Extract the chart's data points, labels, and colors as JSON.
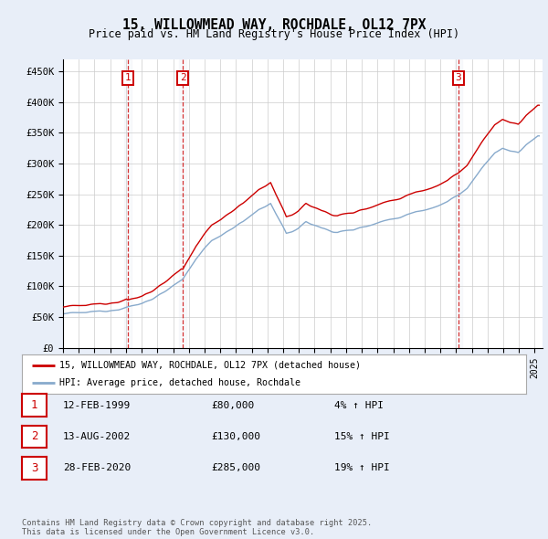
{
  "title": "15, WILLOWMEAD WAY, ROCHDALE, OL12 7PX",
  "subtitle": "Price paid vs. HM Land Registry's House Price Index (HPI)",
  "ylim": [
    0,
    470000
  ],
  "yticks": [
    0,
    50000,
    100000,
    150000,
    200000,
    250000,
    300000,
    350000,
    400000,
    450000
  ],
  "ytick_labels": [
    "£0",
    "£50K",
    "£100K",
    "£150K",
    "£200K",
    "£250K",
    "£300K",
    "£350K",
    "£400K",
    "£450K"
  ],
  "background_color": "#e8eef8",
  "plot_bg_color": "#ffffff",
  "grid_color": "#cccccc",
  "sale_dates": [
    "1999-02-12",
    "2002-08-13",
    "2020-02-28"
  ],
  "sale_prices": [
    80000,
    130000,
    285000
  ],
  "sale_labels": [
    "1",
    "2",
    "3"
  ],
  "sale_label_color": "#cc0000",
  "red_line_color": "#cc0000",
  "blue_line_color": "#88aacc",
  "legend_red": "15, WILLOWMEAD WAY, ROCHDALE, OL12 7PX (detached house)",
  "legend_blue": "HPI: Average price, detached house, Rochdale",
  "table_entries": [
    {
      "label": "1",
      "date": "12-FEB-1999",
      "price": "£80,000",
      "change": "4% ↑ HPI"
    },
    {
      "label": "2",
      "date": "13-AUG-2002",
      "price": "£130,000",
      "change": "15% ↑ HPI"
    },
    {
      "label": "3",
      "date": "28-FEB-2020",
      "price": "£285,000",
      "change": "19% ↑ HPI"
    }
  ],
  "footer": "Contains HM Land Registry data © Crown copyright and database right 2025.\nThis data is licensed under the Open Government Licence v3.0.",
  "hpi_keypoints": [
    [
      1995,
      1,
      55000
    ],
    [
      1996,
      6,
      57000
    ],
    [
      1997,
      6,
      60000
    ],
    [
      1998,
      6,
      63000
    ],
    [
      1999,
      2,
      66000
    ],
    [
      2000,
      1,
      72000
    ],
    [
      2001,
      1,
      85000
    ],
    [
      2002,
      8,
      110000
    ],
    [
      2003,
      6,
      145000
    ],
    [
      2004,
      6,
      175000
    ],
    [
      2005,
      6,
      190000
    ],
    [
      2006,
      6,
      205000
    ],
    [
      2007,
      6,
      225000
    ],
    [
      2008,
      3,
      235000
    ],
    [
      2009,
      3,
      185000
    ],
    [
      2009,
      12,
      195000
    ],
    [
      2010,
      6,
      205000
    ],
    [
      2011,
      6,
      195000
    ],
    [
      2012,
      6,
      188000
    ],
    [
      2013,
      6,
      192000
    ],
    [
      2014,
      6,
      200000
    ],
    [
      2015,
      6,
      207000
    ],
    [
      2016,
      6,
      213000
    ],
    [
      2017,
      6,
      222000
    ],
    [
      2018,
      6,
      228000
    ],
    [
      2019,
      6,
      238000
    ],
    [
      2020,
      2,
      248000
    ],
    [
      2020,
      9,
      260000
    ],
    [
      2021,
      6,
      285000
    ],
    [
      2022,
      6,
      318000
    ],
    [
      2022,
      12,
      325000
    ],
    [
      2023,
      6,
      320000
    ],
    [
      2023,
      12,
      318000
    ],
    [
      2024,
      6,
      330000
    ],
    [
      2025,
      3,
      345000
    ]
  ]
}
